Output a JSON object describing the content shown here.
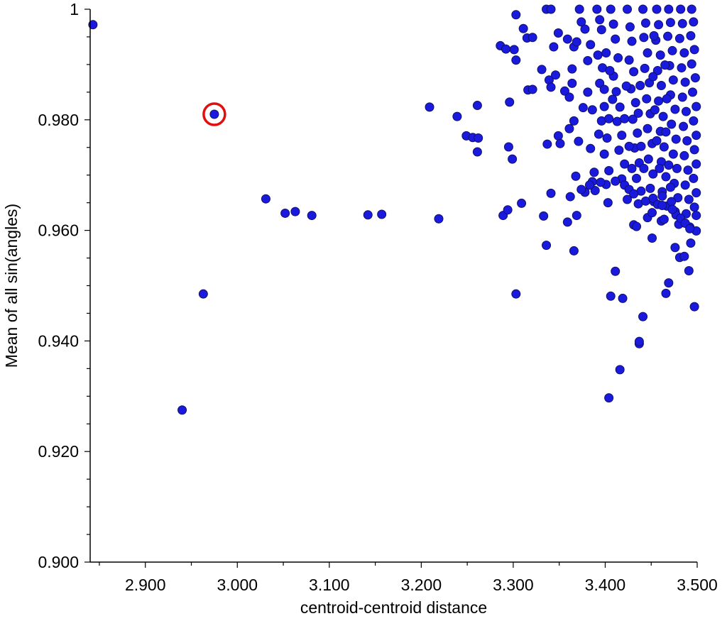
{
  "chart_data": {
    "type": "scatter",
    "title": "",
    "xlabel": "centroid-centroid distance",
    "ylabel": "Mean of all sin(angles)",
    "xlim": [
      2.84,
      3.5
    ],
    "ylim": [
      0.9,
      1.0
    ],
    "x_ticks": [
      2.9,
      3.0,
      3.1,
      3.2,
      3.3,
      3.4,
      3.5
    ],
    "x_tick_labels": [
      "2.900",
      "3.000",
      "3.100",
      "3.200",
      "3.300",
      "3.400",
      "3.500"
    ],
    "y_ticks": [
      0.9,
      0.92,
      0.94,
      0.96,
      0.98,
      1.0
    ],
    "y_tick_labels": [
      "0.900",
      "0.920",
      "0.940",
      "0.960",
      "0.980",
      "1"
    ],
    "grid": false,
    "point_color": "#1a1adf",
    "highlight_color": "#e01010",
    "highlighted_point": {
      "x": 2.975,
      "y": 0.981
    },
    "series": [
      {
        "points": [
          [
            2.843,
            0.9972
          ],
          [
            2.975,
            0.981
          ],
          [
            2.963,
            0.9485
          ],
          [
            2.94,
            0.9275
          ],
          [
            3.031,
            0.9657
          ],
          [
            3.052,
            0.9631
          ],
          [
            3.063,
            0.9634
          ],
          [
            3.081,
            0.9627
          ],
          [
            3.142,
            0.9628
          ],
          [
            3.157,
            0.9629
          ],
          [
            3.219,
            0.9621
          ],
          [
            3.209,
            0.9823
          ],
          [
            3.239,
            0.9806
          ],
          [
            3.261,
            0.9826
          ],
          [
            3.249,
            0.9771
          ],
          [
            3.256,
            0.9768
          ],
          [
            3.262,
            0.9767
          ],
          [
            3.261,
            0.9742
          ],
          [
            3.286,
            0.9934
          ],
          [
            3.292,
            0.9928
          ],
          [
            3.301,
            0.9927
          ],
          [
            3.303,
            0.9908
          ],
          [
            3.303,
            0.999
          ],
          [
            3.311,
            0.9965
          ],
          [
            3.315,
            0.9948
          ],
          [
            3.321,
            0.9949
          ],
          [
            3.296,
            0.9832
          ],
          [
            3.295,
            0.9751
          ],
          [
            3.299,
            0.9729
          ],
          [
            3.289,
            0.9627
          ],
          [
            3.294,
            0.9637
          ],
          [
            3.309,
            0.9649
          ],
          [
            3.303,
            0.9485
          ],
          [
            3.316,
            0.9854
          ],
          [
            3.321,
            0.9855
          ],
          [
            3.331,
            0.9891
          ],
          [
            3.339,
            0.9872
          ],
          [
            3.333,
            0.9626
          ],
          [
            3.336,
            0.9573
          ],
          [
            3.337,
            0.9756
          ],
          [
            3.341,
            0.9667
          ],
          [
            3.336,
            1.0
          ],
          [
            3.341,
            1.0
          ],
          [
            3.344,
            0.9932
          ],
          [
            3.349,
            0.9957
          ],
          [
            3.346,
            0.9881
          ],
          [
            3.341,
            0.9859
          ],
          [
            3.349,
            0.9771
          ],
          [
            3.351,
            0.9757
          ],
          [
            3.359,
            0.9946
          ],
          [
            3.356,
            0.9852
          ],
          [
            3.361,
            0.9841
          ],
          [
            3.364,
            0.9892
          ],
          [
            3.366,
            0.9932
          ],
          [
            3.369,
            0.9941
          ],
          [
            3.364,
            0.9866
          ],
          [
            3.366,
            0.9798
          ],
          [
            3.361,
            0.9784
          ],
          [
            3.371,
            0.9761
          ],
          [
            3.368,
            0.9698
          ],
          [
            3.362,
            0.9661
          ],
          [
            3.359,
            0.9615
          ],
          [
            3.366,
            0.9563
          ],
          [
            3.369,
            0.9627
          ],
          [
            3.372,
            1.0
          ],
          [
            3.374,
            0.9977
          ],
          [
            3.378,
            0.9964
          ],
          [
            3.376,
            0.9822
          ],
          [
            3.381,
            0.9907
          ],
          [
            3.384,
            0.9936
          ],
          [
            3.381,
            0.985
          ],
          [
            3.386,
            0.9818
          ],
          [
            3.384,
            0.9748
          ],
          [
            3.386,
            0.9688
          ],
          [
            3.389,
            0.9672
          ],
          [
            3.391,
            1.0
          ],
          [
            3.394,
            0.9981
          ],
          [
            3.396,
            0.9963
          ],
          [
            3.392,
            0.9917
          ],
          [
            3.397,
            0.9894
          ],
          [
            3.394,
            0.9866
          ],
          [
            3.399,
            0.9824
          ],
          [
            3.396,
            0.9798
          ],
          [
            3.402,
            0.9767
          ],
          [
            3.399,
            0.9738
          ],
          [
            3.404,
            0.9708
          ],
          [
            3.401,
            0.9683
          ],
          [
            3.403,
            0.965
          ],
          [
            3.406,
            0.9481
          ],
          [
            3.404,
            0.9297
          ],
          [
            3.411,
            0.9526
          ],
          [
            3.416,
            0.9348
          ],
          [
            3.419,
            0.9477
          ],
          [
            3.424,
            0.9656
          ],
          [
            3.431,
            0.961
          ],
          [
            3.434,
            0.9607
          ],
          [
            3.437,
            0.9395
          ],
          [
            3.437,
            0.9399
          ],
          [
            3.441,
            0.9444
          ],
          [
            3.446,
            0.9623
          ],
          [
            3.451,
            0.9586
          ],
          [
            3.461,
            0.9617
          ],
          [
            3.466,
            0.9486
          ],
          [
            3.469,
            0.9505
          ],
          [
            3.476,
            0.9569
          ],
          [
            3.481,
            0.9551
          ],
          [
            3.486,
            0.9553
          ],
          [
            3.491,
            0.9527
          ],
          [
            3.493,
            0.9577
          ],
          [
            3.497,
            0.9462
          ],
          [
            3.499,
            0.9599
          ],
          [
            3.406,
            1.0
          ],
          [
            3.409,
            0.9973
          ],
          [
            3.411,
            0.9946
          ],
          [
            3.414,
            0.9912
          ],
          [
            3.409,
            0.9879
          ],
          [
            3.412,
            0.9851
          ],
          [
            3.416,
            0.9823
          ],
          [
            3.413,
            0.9797
          ],
          [
            3.418,
            0.9772
          ],
          [
            3.415,
            0.9745
          ],
          [
            3.421,
            0.972
          ],
          [
            3.418,
            0.9693
          ],
          [
            3.424,
            1.0
          ],
          [
            3.427,
            0.9968
          ],
          [
            3.429,
            0.9942
          ],
          [
            3.426,
            0.9908
          ],
          [
            3.431,
            0.9887
          ],
          [
            3.428,
            0.9856
          ],
          [
            3.433,
            0.9831
          ],
          [
            3.43,
            0.9801
          ],
          [
            3.435,
            0.9776
          ],
          [
            3.432,
            0.9749
          ],
          [
            3.437,
            0.9722
          ],
          [
            3.434,
            0.9694
          ],
          [
            3.439,
            0.9671
          ],
          [
            3.436,
            0.9648
          ],
          [
            3.441,
            1.0
          ],
          [
            3.444,
            0.9975
          ],
          [
            3.442,
            0.9949
          ],
          [
            3.446,
            0.9921
          ],
          [
            3.443,
            0.9893
          ],
          [
            3.448,
            0.9867
          ],
          [
            3.445,
            0.9838
          ],
          [
            3.449,
            0.9811
          ],
          [
            3.446,
            0.9784
          ],
          [
            3.451,
            0.9757
          ],
          [
            3.447,
            0.9729
          ],
          [
            3.452,
            0.9702
          ],
          [
            3.449,
            0.9676
          ],
          [
            3.453,
            0.9652
          ],
          [
            3.451,
            0.9632
          ],
          [
            3.456,
            1.0
          ],
          [
            3.458,
            0.9972
          ],
          [
            3.455,
            0.9944
          ],
          [
            3.46,
            0.9917
          ],
          [
            3.457,
            0.9889
          ],
          [
            3.461,
            0.9862
          ],
          [
            3.458,
            0.9834
          ],
          [
            3.463,
            0.9806
          ],
          [
            3.46,
            0.9779
          ],
          [
            3.464,
            0.9751
          ],
          [
            3.461,
            0.9724
          ],
          [
            3.466,
            0.9697
          ],
          [
            3.462,
            0.967
          ],
          [
            3.467,
            0.9644
          ],
          [
            3.464,
            0.962
          ],
          [
            3.469,
            1.0
          ],
          [
            3.471,
            0.9976
          ],
          [
            3.468,
            0.9951
          ],
          [
            3.473,
            0.9925
          ],
          [
            3.47,
            0.9898
          ],
          [
            3.474,
            0.9872
          ],
          [
            3.471,
            0.9845
          ],
          [
            3.476,
            0.9819
          ],
          [
            3.472,
            0.9792
          ],
          [
            3.477,
            0.9765
          ],
          [
            3.474,
            0.9738
          ],
          [
            3.478,
            0.9712
          ],
          [
            3.475,
            0.9685
          ],
          [
            3.479,
            0.9659
          ],
          [
            3.476,
            0.9634
          ],
          [
            3.48,
            0.9611
          ],
          [
            3.482,
            1.0
          ],
          [
            3.484,
            0.9974
          ],
          [
            3.481,
            0.9947
          ],
          [
            3.486,
            0.9921
          ],
          [
            3.483,
            0.9894
          ],
          [
            3.487,
            0.9868
          ],
          [
            3.484,
            0.9841
          ],
          [
            3.488,
            0.9815
          ],
          [
            3.485,
            0.9788
          ],
          [
            3.489,
            0.9762
          ],
          [
            3.486,
            0.9735
          ],
          [
            3.49,
            0.9709
          ],
          [
            3.487,
            0.9682
          ],
          [
            3.491,
            0.9656
          ],
          [
            3.488,
            0.963
          ],
          [
            3.492,
            0.9606
          ],
          [
            3.494,
            1.0
          ],
          [
            3.496,
            0.9977
          ],
          [
            3.493,
            0.9952
          ],
          [
            3.497,
            0.9927
          ],
          [
            3.494,
            0.9901
          ],
          [
            3.498,
            0.9876
          ],
          [
            3.495,
            0.985
          ],
          [
            3.499,
            0.9824
          ],
          [
            3.496,
            0.9798
          ],
          [
            3.499,
            0.9772
          ],
          [
            3.497,
            0.9746
          ],
          [
            3.499,
            0.972
          ],
          [
            3.496,
            0.9694
          ],
          [
            3.499,
            0.9668
          ],
          [
            3.497,
            0.9642
          ],
          [
            3.499,
            0.9627
          ],
          [
            3.399,
            0.9855
          ],
          [
            3.393,
            0.9774
          ],
          [
            3.388,
            0.9705
          ],
          [
            3.395,
            0.9687
          ],
          [
            3.378,
            0.9669
          ],
          [
            3.374,
            0.9674
          ],
          [
            3.383,
            0.9682
          ],
          [
            3.411,
            0.9689
          ],
          [
            3.421,
            0.9682
          ],
          [
            3.426,
            0.9674
          ],
          [
            3.431,
            0.9666
          ],
          [
            3.444,
            0.9653
          ],
          [
            3.452,
            0.9658
          ],
          [
            3.457,
            0.9647
          ],
          [
            3.462,
            0.9645
          ],
          [
            3.472,
            0.9652
          ],
          [
            3.477,
            0.9628
          ],
          [
            3.482,
            0.9622
          ],
          [
            3.487,
            0.9613
          ],
          [
            3.492,
            0.9603
          ],
          [
            3.401,
            0.9921
          ],
          [
            3.405,
            0.9889
          ],
          [
            3.408,
            0.9837
          ],
          [
            3.404,
            0.9802
          ],
          [
            3.423,
            0.9861
          ],
          [
            3.421,
            0.9802
          ],
          [
            3.426,
            0.9752
          ],
          [
            3.429,
            0.9712
          ],
          [
            3.438,
            0.9862
          ],
          [
            3.436,
            0.9812
          ],
          [
            3.439,
            0.9752
          ],
          [
            3.442,
            0.9712
          ],
          [
            3.453,
            0.9952
          ],
          [
            3.452,
            0.9878
          ],
          [
            3.454,
            0.9818
          ],
          [
            3.456,
            0.9762
          ],
          [
            3.459,
            0.9712
          ],
          [
            3.462,
            0.9662
          ],
          [
            3.465,
            0.9899
          ],
          [
            3.467,
            0.9838
          ],
          [
            3.466,
            0.9778
          ],
          [
            3.469,
            0.9718
          ],
          [
            3.471,
            0.9678
          ],
          [
            3.473,
            0.9638
          ]
        ]
      }
    ]
  }
}
